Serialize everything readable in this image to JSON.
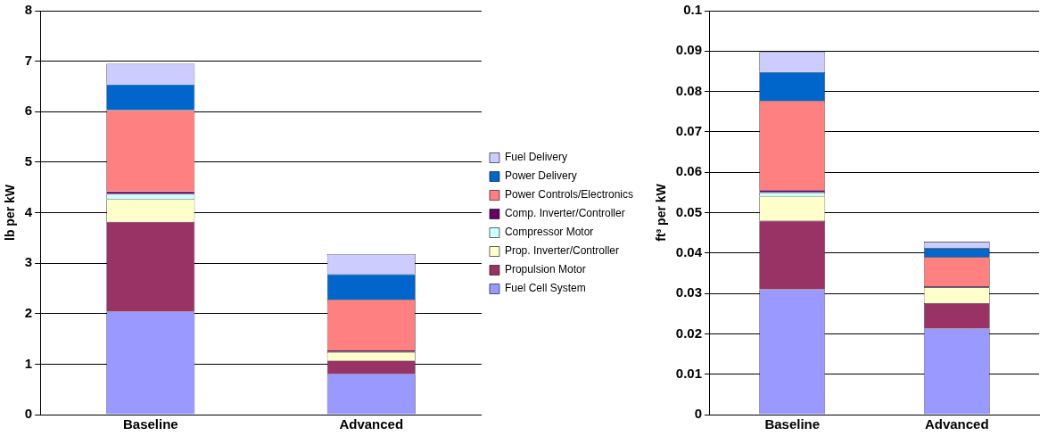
{
  "chart_data": [
    {
      "type": "bar",
      "stacked": true,
      "ylabel": "lb per kW",
      "categories": [
        "Baseline",
        "Advanced"
      ],
      "ylim": [
        0,
        8
      ],
      "yticks": [
        0,
        1,
        2,
        3,
        4,
        5,
        6,
        7,
        8
      ],
      "grid": "y",
      "legend": "right",
      "series": [
        {
          "name": "Fuel Cell System",
          "color": "#9999ff",
          "values": [
            2.04,
            0.81
          ]
        },
        {
          "name": "Propulsion Motor",
          "color": "#993366",
          "values": [
            1.78,
            0.26
          ]
        },
        {
          "name": "Prop. Inverter/Controller",
          "color": "#ffffcc",
          "values": [
            0.45,
            0.17
          ]
        },
        {
          "name": "Compressor Motor",
          "color": "#ccffff",
          "values": [
            0.1,
            null
          ]
        },
        {
          "name": "Comp. Inverter/Controller",
          "color": "#660066",
          "values": [
            0.05,
            0.03
          ]
        },
        {
          "name": "Power Controls/Electronics",
          "color": "#ff8080",
          "values": [
            1.61,
            1.01
          ]
        },
        {
          "name": "Power Delivery",
          "color": "#0066cc",
          "values": [
            0.51,
            0.5
          ]
        },
        {
          "name": "Fuel Delivery",
          "color": "#ccccff",
          "values": [
            0.41,
            0.4
          ]
        }
      ]
    },
    {
      "type": "bar",
      "stacked": true,
      "ylabel": "ft³ per kW",
      "categories": [
        "Baseline",
        "Advanced"
      ],
      "ylim": [
        0,
        0.1
      ],
      "yticks": [
        0,
        0.01,
        0.02,
        0.03,
        0.04,
        0.05,
        0.06,
        0.07,
        0.08,
        0.09,
        0.1
      ],
      "grid": "y",
      "legend": false,
      "series": [
        {
          "color": "#9999ff",
          "values": [
            0.031,
            0.0213
          ]
        },
        {
          "color": "#993366",
          "values": [
            0.017,
            0.0063
          ]
        },
        {
          "color": "#ffffcc",
          "values": [
            0.006,
            0.0039
          ]
        },
        {
          "color": "#ccffff",
          "values": [
            0.001,
            null
          ]
        },
        {
          "color": "#660066",
          "values": [
            0.0006,
            0.0003
          ]
        },
        {
          "color": "#ff8080",
          "values": [
            0.0221,
            0.0072
          ]
        },
        {
          "color": "#0066cc",
          "values": [
            0.0071,
            0.0022
          ]
        },
        {
          "color": "#ccccff",
          "values": [
            0.005,
            0.0016
          ]
        }
      ]
    }
  ]
}
